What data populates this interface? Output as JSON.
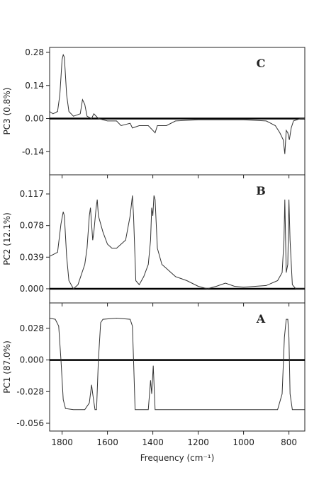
{
  "chart_data": [
    {
      "type": "line",
      "panel_label": "C",
      "y_label": "PC3 (0.8%)",
      "color": "#333333",
      "xlim": [
        1855,
        730
      ],
      "ylim": [
        -0.238,
        0.301
      ],
      "yticks": [
        0.28,
        0.14,
        {
          "value": 0,
          "label": "0.00"
        },
        -0.14
      ],
      "x": [
        1855,
        1840,
        1820,
        1810,
        1800,
        1795,
        1790,
        1780,
        1770,
        1750,
        1720,
        1710,
        1700,
        1690,
        1670,
        1660,
        1640,
        1600,
        1560,
        1540,
        1500,
        1490,
        1460,
        1420,
        1400,
        1390,
        1380,
        1340,
        1300,
        1200,
        1000,
        900,
        860,
        840,
        825,
        818,
        812,
        805,
        798,
        790,
        780,
        750,
        730
      ],
      "values": [
        0.03,
        0.02,
        0.03,
        0.1,
        0.25,
        0.27,
        0.26,
        0.1,
        0.03,
        0.01,
        0.02,
        0.08,
        0.06,
        0.01,
        0.0,
        0.02,
        0.0,
        -0.01,
        -0.01,
        -0.03,
        -0.02,
        -0.04,
        -0.03,
        -0.03,
        -0.05,
        -0.06,
        -0.03,
        -0.03,
        -0.01,
        -0.005,
        -0.005,
        -0.01,
        -0.03,
        -0.06,
        -0.09,
        -0.15,
        -0.05,
        -0.06,
        -0.09,
        -0.04,
        -0.01,
        0.0,
        0.0
      ]
    },
    {
      "type": "line",
      "panel_label": "B",
      "y_label": "PC2 (12.1%)",
      "color": "#333333",
      "xlim": [
        1855,
        730
      ],
      "ylim": [
        -0.0175,
        0.1406
      ],
      "yticks": [
        0.117,
        0.078,
        0.039,
        {
          "value": 0,
          "label": "0.000"
        }
      ],
      "x": [
        1855,
        1820,
        1805,
        1795,
        1790,
        1780,
        1770,
        1750,
        1730,
        1700,
        1690,
        1680,
        1675,
        1665,
        1660,
        1650,
        1645,
        1640,
        1620,
        1600,
        1580,
        1560,
        1540,
        1520,
        1500,
        1490,
        1485,
        1475,
        1460,
        1440,
        1420,
        1410,
        1405,
        1400,
        1395,
        1390,
        1380,
        1360,
        1340,
        1300,
        1250,
        1200,
        1160,
        1120,
        1080,
        1040,
        1000,
        900,
        850,
        830,
        822,
        818,
        812,
        805,
        800,
        795,
        785,
        770,
        730
      ],
      "values": [
        0.04,
        0.045,
        0.08,
        0.095,
        0.09,
        0.04,
        0.01,
        0.0,
        0.005,
        0.03,
        0.05,
        0.09,
        0.1,
        0.06,
        0.07,
        0.1,
        0.11,
        0.09,
        0.07,
        0.055,
        0.05,
        0.05,
        0.055,
        0.06,
        0.09,
        0.115,
        0.09,
        0.01,
        0.005,
        0.015,
        0.03,
        0.06,
        0.1,
        0.09,
        0.115,
        0.11,
        0.05,
        0.03,
        0.025,
        0.015,
        0.01,
        0.003,
        0.0,
        0.003,
        0.007,
        0.003,
        0.002,
        0.004,
        0.01,
        0.02,
        0.06,
        0.11,
        0.02,
        0.03,
        0.11,
        0.06,
        0.005,
        0.0,
        0.0
      ]
    },
    {
      "type": "line",
      "panel_label": "A",
      "y_label": "PC1 (87.0%)",
      "color": "#333333",
      "xlim": [
        1855,
        730
      ],
      "ylim": [
        -0.0629,
        0.0505
      ],
      "yticks": [
        0.028,
        {
          "value": 0,
          "label": "0.000"
        },
        -0.028,
        -0.056
      ],
      "x_label": "Frequency (cm⁻¹)",
      "xticks": [
        1800,
        1600,
        1400,
        1200,
        1000,
        800
      ],
      "x": [
        1855,
        1830,
        1815,
        1805,
        1795,
        1785,
        1750,
        1700,
        1680,
        1670,
        1665,
        1655,
        1648,
        1640,
        1630,
        1620,
        1560,
        1500,
        1490,
        1485,
        1478,
        1420,
        1410,
        1405,
        1398,
        1390,
        1300,
        1000,
        850,
        830,
        820,
        812,
        805,
        800,
        795,
        785,
        730
      ],
      "values": [
        0.037,
        0.036,
        0.03,
        0.0,
        -0.035,
        -0.043,
        -0.044,
        -0.044,
        -0.038,
        -0.022,
        -0.03,
        -0.044,
        -0.044,
        0.0,
        0.033,
        0.036,
        0.037,
        0.036,
        0.03,
        0.0,
        -0.044,
        -0.044,
        -0.018,
        -0.03,
        -0.005,
        -0.044,
        -0.044,
        -0.044,
        -0.044,
        -0.03,
        0.02,
        0.036,
        0.036,
        0.02,
        -0.03,
        -0.044,
        -0.044
      ]
    }
  ]
}
